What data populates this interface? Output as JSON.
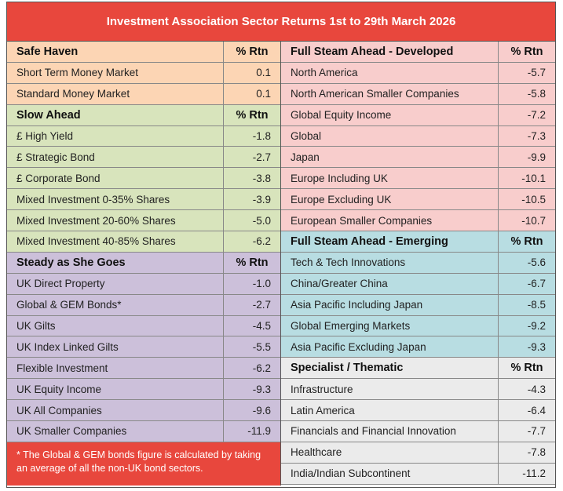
{
  "title": "Investment Association Sector Returns 1st to 29th March  2026",
  "left": [
    {
      "heading": "Safe Haven",
      "value_header": "% Rtn",
      "rows": [
        [
          "Short Term Money Market",
          "0.1"
        ],
        [
          "Standard Money Market",
          "0.1"
        ]
      ]
    },
    {
      "heading": "Slow Ahead",
      "value_header": "% Rtn",
      "rows": [
        [
          "£ High Yield",
          "-1.8"
        ],
        [
          "£ Strategic Bond",
          "-2.7"
        ],
        [
          "£ Corporate Bond",
          "-3.8"
        ],
        [
          "Mixed Investment 0-35% Shares",
          "-3.9"
        ],
        [
          "Mixed Investment 20-60% Shares",
          "-5.0"
        ],
        [
          "Mixed Investment 40-85% Shares",
          "-6.2"
        ]
      ]
    },
    {
      "heading": "Steady as She Goes",
      "value_header": "% Rtn",
      "rows": [
        [
          "UK Direct Property",
          "-1.0"
        ],
        [
          "Global & GEM Bonds*",
          "-2.7"
        ],
        [
          "UK Gilts",
          "-4.5"
        ],
        [
          "UK Index Linked Gilts",
          "-5.5"
        ],
        [
          "Flexible Investment",
          "-6.2"
        ],
        [
          "UK Equity Income",
          "-9.3"
        ],
        [
          "UK All Companies",
          "-9.6"
        ],
        [
          "UK Smaller Companies",
          "-11.9"
        ]
      ]
    }
  ],
  "right": [
    {
      "heading": "Full Steam Ahead - Developed",
      "value_header": "% Rtn",
      "rows": [
        [
          "North America",
          "-5.7"
        ],
        [
          "North American Smaller Companies",
          "-5.8"
        ],
        [
          "Global Equity Income",
          "-7.2"
        ],
        [
          "Global",
          "-7.3"
        ],
        [
          "Japan",
          "-9.9"
        ],
        [
          "Europe Including UK",
          "-10.1"
        ],
        [
          "Europe Excluding UK",
          "-10.5"
        ],
        [
          "European Smaller Companies",
          "-10.7"
        ]
      ]
    },
    {
      "heading": "Full Steam Ahead - Emerging",
      "value_header": "% Rtn",
      "rows": [
        [
          "Tech & Tech Innovations",
          "-5.6"
        ],
        [
          "China/Greater China",
          "-6.7"
        ],
        [
          "Asia Pacific Including Japan",
          "-8.5"
        ],
        [
          "Global Emerging Markets",
          "-9.2"
        ],
        [
          "Asia Pacific Excluding Japan",
          "-9.3"
        ]
      ]
    },
    {
      "heading": "Specialist / Thematic",
      "value_header": "% Rtn",
      "rows": [
        [
          "Infrastructure",
          "-4.3"
        ],
        [
          "Latin America",
          "-6.4"
        ],
        [
          "Financials and Financial Innovation",
          "-7.7"
        ],
        [
          "Healthcare",
          "-7.8"
        ],
        [
          "India/Indian Subcontinent",
          "-11.2"
        ]
      ]
    }
  ],
  "footnote": "* The Global & GEM bonds figure is calculated by taking an average of all the non-UK bond sectors."
}
